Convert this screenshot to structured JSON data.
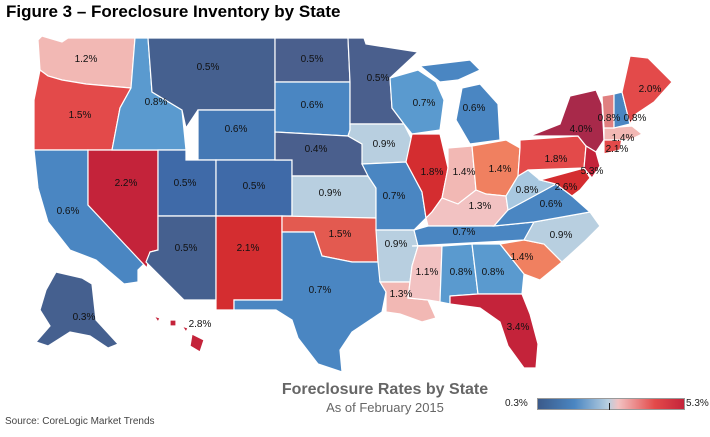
{
  "figure_title": "Figure 3 – Foreclosure Inventory by State",
  "map_title": "Foreclosure Rates by State",
  "map_subtitle": "As of February 2015",
  "source": "Source: CoreLogic Market Trends",
  "legend": {
    "min_label": "0.3%",
    "max_label": "5.3%"
  },
  "colors": {
    "low": "#3b5a8a",
    "mid_low": "#4a86c2",
    "neutral": "#b8cfe0",
    "mid_high": "#f2c2c2",
    "high": "#e34a4a",
    "max": "#c4233a"
  },
  "states": [
    {
      "id": "WA",
      "value": "1.2%"
    },
    {
      "id": "OR",
      "value": "1.5%"
    },
    {
      "id": "CA",
      "value": "0.6%"
    },
    {
      "id": "NV",
      "value": "2.2%"
    },
    {
      "id": "ID",
      "value": "0.8%"
    },
    {
      "id": "MT",
      "value": "0.5%"
    },
    {
      "id": "WY",
      "value": "0.6%"
    },
    {
      "id": "UT",
      "value": "0.5%"
    },
    {
      "id": "CO",
      "value": "0.5%"
    },
    {
      "id": "AZ",
      "value": "0.5%"
    },
    {
      "id": "NM",
      "value": "2.1%"
    },
    {
      "id": "ND",
      "value": "0.5%"
    },
    {
      "id": "SD",
      "value": "0.6%"
    },
    {
      "id": "NE",
      "value": "0.4%"
    },
    {
      "id": "KS",
      "value": "0.9%"
    },
    {
      "id": "OK",
      "value": "1.5%"
    },
    {
      "id": "TX",
      "value": "0.7%"
    },
    {
      "id": "MN",
      "value": "0.5%"
    },
    {
      "id": "IA",
      "value": "0.9%"
    },
    {
      "id": "MO",
      "value": "0.7%"
    },
    {
      "id": "AR",
      "value": "0.9%"
    },
    {
      "id": "LA",
      "value": "1.3%"
    },
    {
      "id": "WI",
      "value": "0.7%"
    },
    {
      "id": "IL",
      "value": "1.8%"
    },
    {
      "id": "MI",
      "value": "0.6%"
    },
    {
      "id": "IN",
      "value": "1.4%"
    },
    {
      "id": "OH",
      "value": "1.4%"
    },
    {
      "id": "KY",
      "value": "1.3%"
    },
    {
      "id": "TN",
      "value": "0.7%"
    },
    {
      "id": "MS",
      "value": "1.1%"
    },
    {
      "id": "AL",
      "value": "0.8%"
    },
    {
      "id": "GA",
      "value": "0.8%"
    },
    {
      "id": "FL",
      "value": "3.4%"
    },
    {
      "id": "SC",
      "value": "1.4%"
    },
    {
      "id": "NC",
      "value": "0.9%"
    },
    {
      "id": "VA",
      "value": "0.6%"
    },
    {
      "id": "WV",
      "value": "0.8%"
    },
    {
      "id": "PA",
      "value": "1.8%"
    },
    {
      "id": "NY",
      "value": "4.0%"
    },
    {
      "id": "MD",
      "value": "2.6%"
    },
    {
      "id": "NJ",
      "value": "5.3%"
    },
    {
      "id": "CT",
      "value": "2.1%"
    },
    {
      "id": "MA",
      "value": "1.4%"
    },
    {
      "id": "VT",
      "value": "0.8%"
    },
    {
      "id": "NH",
      "value": "0.8%"
    },
    {
      "id": "ME",
      "value": "2.0%"
    },
    {
      "id": "AK",
      "value": "0.3%"
    },
    {
      "id": "HI",
      "value": "2.8%"
    }
  ]
}
